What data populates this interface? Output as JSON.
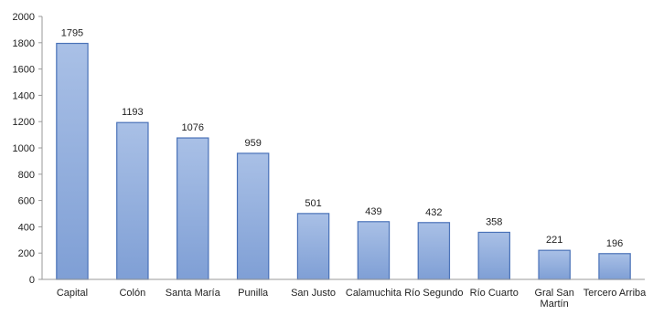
{
  "chart_data": {
    "type": "bar",
    "categories": [
      "Capital",
      "Colón",
      "Santa María",
      "Punilla",
      "San Justo",
      "Calamuchita",
      "Río Segundo",
      "Río Cuarto",
      "Gral San Martín",
      "Tercero Arriba"
    ],
    "category_lines": [
      [
        "Capital"
      ],
      [
        "Colón"
      ],
      [
        "Santa María"
      ],
      [
        "Punilla"
      ],
      [
        "San Justo"
      ],
      [
        "Calamuchita"
      ],
      [
        "Río Segundo"
      ],
      [
        "Río Cuarto"
      ],
      [
        "Gral San",
        "Martín"
      ],
      [
        "Tercero Arriba"
      ]
    ],
    "values": [
      1795,
      1193,
      1076,
      959,
      501,
      439,
      432,
      358,
      221,
      196
    ],
    "ylim": [
      0,
      2000
    ],
    "yticks": [
      0,
      200,
      400,
      600,
      800,
      1000,
      1200,
      1400,
      1600,
      1800,
      2000
    ],
    "title": "",
    "xlabel": "",
    "ylabel": "",
    "grid": false,
    "legend": "none",
    "colors": {
      "bar_top": "#a9c0e6",
      "bar_bottom": "#7f9fd5",
      "bar_stroke": "#4a72b8",
      "axis": "#999999"
    }
  }
}
